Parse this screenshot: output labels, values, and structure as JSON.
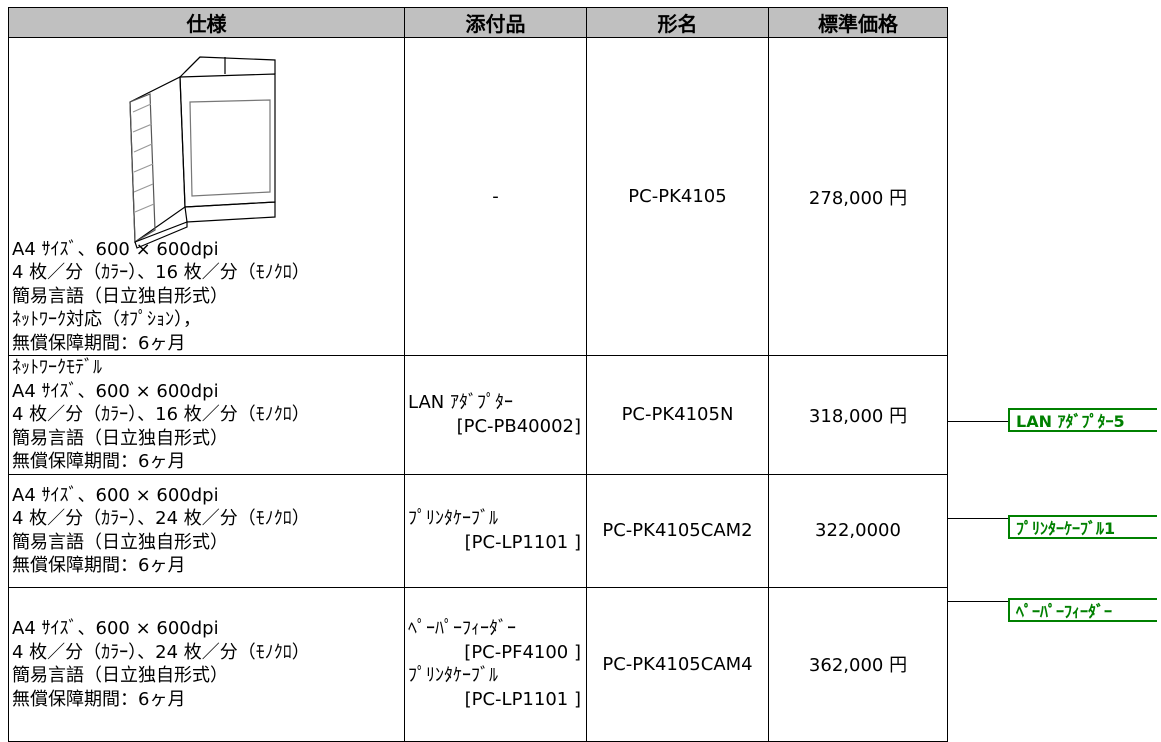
{
  "table": {
    "header": [
      "仕様",
      "添付品",
      "形名",
      "標準価格"
    ],
    "rows": [
      {
        "spec": [
          "A4 ｻｲｽﾞ、600 × 600dpi",
          "4 枚／分（ｶﾗｰ）、16 枚／分（ﾓﾉｸﾛ）",
          "簡易言語（日立独自形式）",
          "ﾈｯﾄﾜｰｸ対応（ｵﾌﾟｼｮﾝ），",
          "無償保障期間：6ヶ月"
        ],
        "accessories": [
          "-"
        ],
        "model": "PC-PK4105",
        "price": "278,000 円"
      },
      {
        "spec": [
          "ﾈｯﾄﾜｰｸﾓﾃﾞﾙ",
          "A4 ｻｲｽﾞ、600 × 600dpi",
          "4 枚／分（ｶﾗｰ）、16 枚／分（ﾓﾉｸﾛ）",
          "簡易言語（日立独自形式）",
          "無償保障期間：6ヶ月"
        ],
        "accessories": [
          "LAN ｱﾀﾞﾌﾟﾀｰ",
          "[PC-PB40002]"
        ],
        "model": "PC-PK4105N",
        "price": "318,000 円"
      },
      {
        "spec": [
          "A4 ｻｲｽﾞ、600 × 600dpi",
          "4 枚／分（ｶﾗｰ）、24 枚／分（ﾓﾉｸﾛ）",
          "簡易言語（日立独自形式）",
          "無償保障期間：6ヶ月"
        ],
        "accessories": [
          "ﾌﾟﾘﾝﾀｹｰﾌﾞﾙ",
          "[PC-LP1101 ]"
        ],
        "model": "PC-PK4105CAM2",
        "price": "322,0000"
      },
      {
        "spec": [
          "A4 ｻｲｽﾞ、600 × 600dpi",
          "4 枚／分（ｶﾗｰ）、24 枚／分（ﾓﾉｸﾛ）",
          "簡易言語（日立独自形式）",
          "無償保障期間：6ヶ月"
        ],
        "accessories": [
          "ﾍﾟｰﾊﾟｰﾌｨｰﾀﾞｰ",
          "[PC-PF4100 ]",
          "ﾌﾟﾘﾝﾀｹｰﾌﾞﾙ",
          "[PC-LP1101 ]"
        ],
        "model": "PC-PK4105CAM4",
        "price": "362,000 円"
      }
    ]
  },
  "callouts": [
    "LAN ｱﾀﾞﾌﾟﾀｰ5",
    "ﾌﾟﾘﾝﾀｰｹｰﾌﾞﾙ1",
    "ﾍﾟｰﾊﾟｰﾌｨｰﾀﾞｰ"
  ]
}
